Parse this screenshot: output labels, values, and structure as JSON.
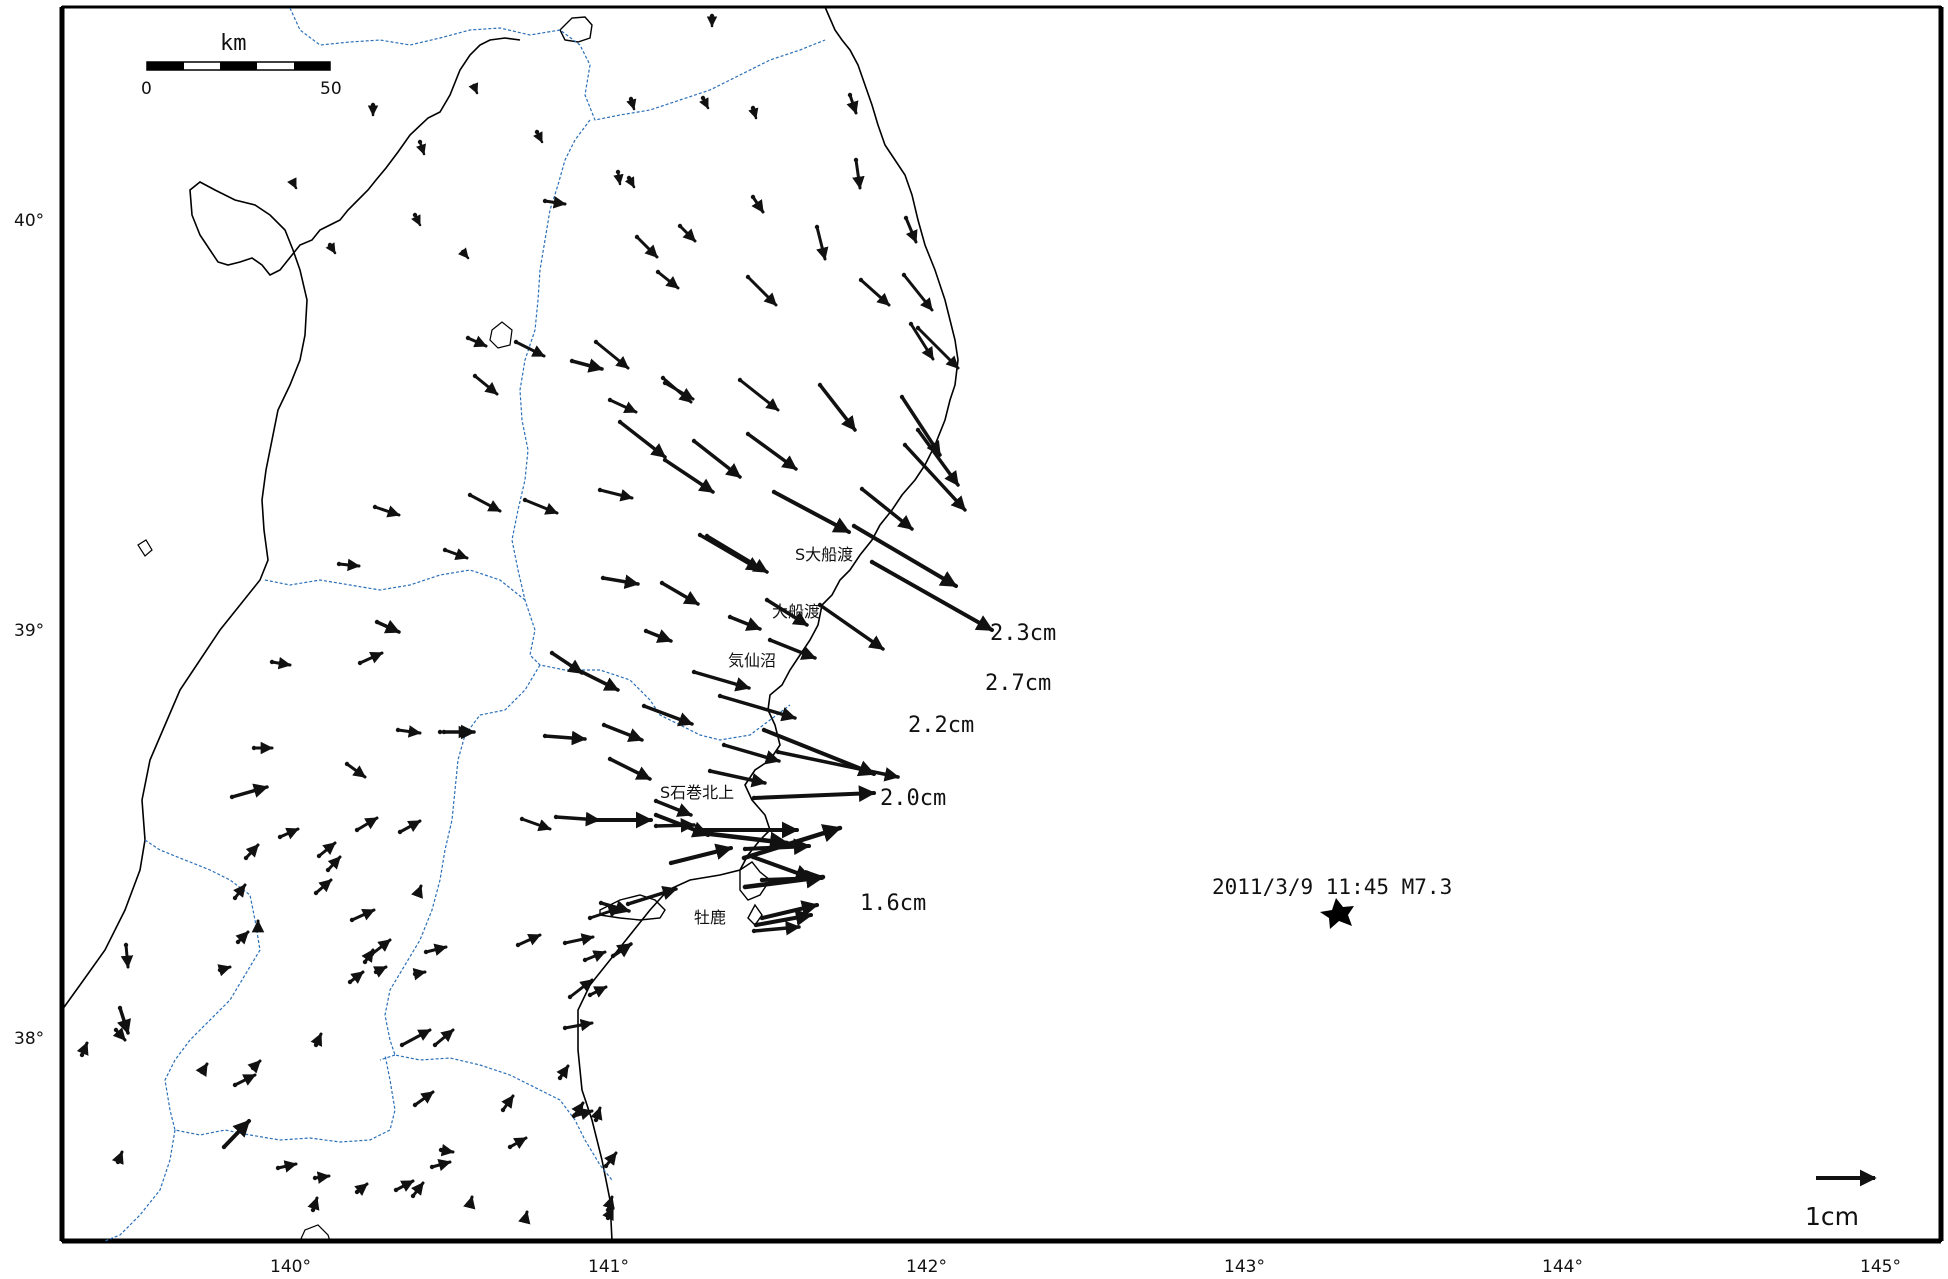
{
  "scale_bar": {
    "unit": "km",
    "start": "0",
    "end": "50"
  },
  "lat_ticks": [
    "40°",
    "39°",
    "38°"
  ],
  "lon_ticks": [
    "140°",
    "141°",
    "142°",
    "143°",
    "144°",
    "145°"
  ],
  "reference": {
    "label": "1cm",
    "cm": 1
  },
  "epicenter": {
    "label": "2011/3/9 11:45 M7.3",
    "lon": 143.28,
    "lat": 38.33
  },
  "stations": [
    {
      "name": "S大船渡"
    },
    {
      "name": "大船渡"
    },
    {
      "name": "気仙沼"
    },
    {
      "name": "S石巻北上"
    },
    {
      "name": "牡鹿"
    }
  ],
  "displacement_labels": [
    "2.3cm",
    "2.7cm",
    "2.2cm",
    "2.0cm",
    "1.6cm"
  ],
  "colors": {
    "coast": "#000000",
    "prefecture_border": "#2a6fb8",
    "arrow": "#111111",
    "frame": "#000000"
  }
}
